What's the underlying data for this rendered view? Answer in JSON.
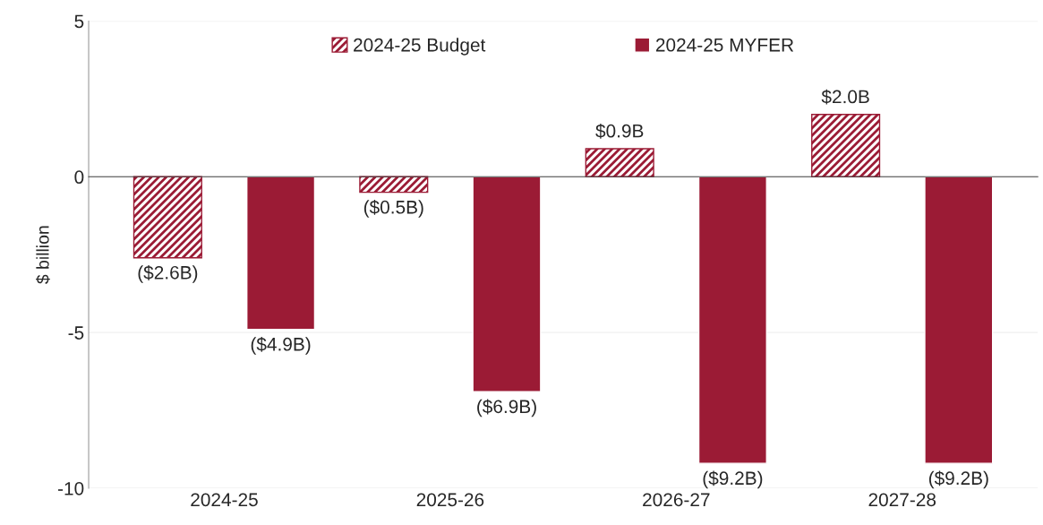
{
  "chart_data": {
    "type": "bar",
    "ylabel": "$ billion",
    "categories": [
      "2024-25",
      "2025-26",
      "2026-27",
      "2027-28"
    ],
    "series": [
      {
        "name": "2024-25 Budget",
        "color": "#9b1b35",
        "values": [
          -2.6,
          -0.5,
          0.9,
          2.0
        ],
        "value_labels": [
          "($2.6B)",
          "($0.5B)",
          "$0.9B",
          "$2.0B"
        ]
      },
      {
        "name": "2024-25 MYFER",
        "color": "#9b1b35",
        "values": [
          -4.9,
          -6.9,
          -9.2,
          -9.2
        ],
        "value_labels": [
          "($4.9B)",
          "($6.9B)",
          "($9.2B)",
          "($9.2B)"
        ]
      }
    ],
    "ylim": [
      -10,
      5
    ],
    "yticks": [
      -10,
      -5,
      0,
      5
    ],
    "grid": "y",
    "legend": "top"
  }
}
